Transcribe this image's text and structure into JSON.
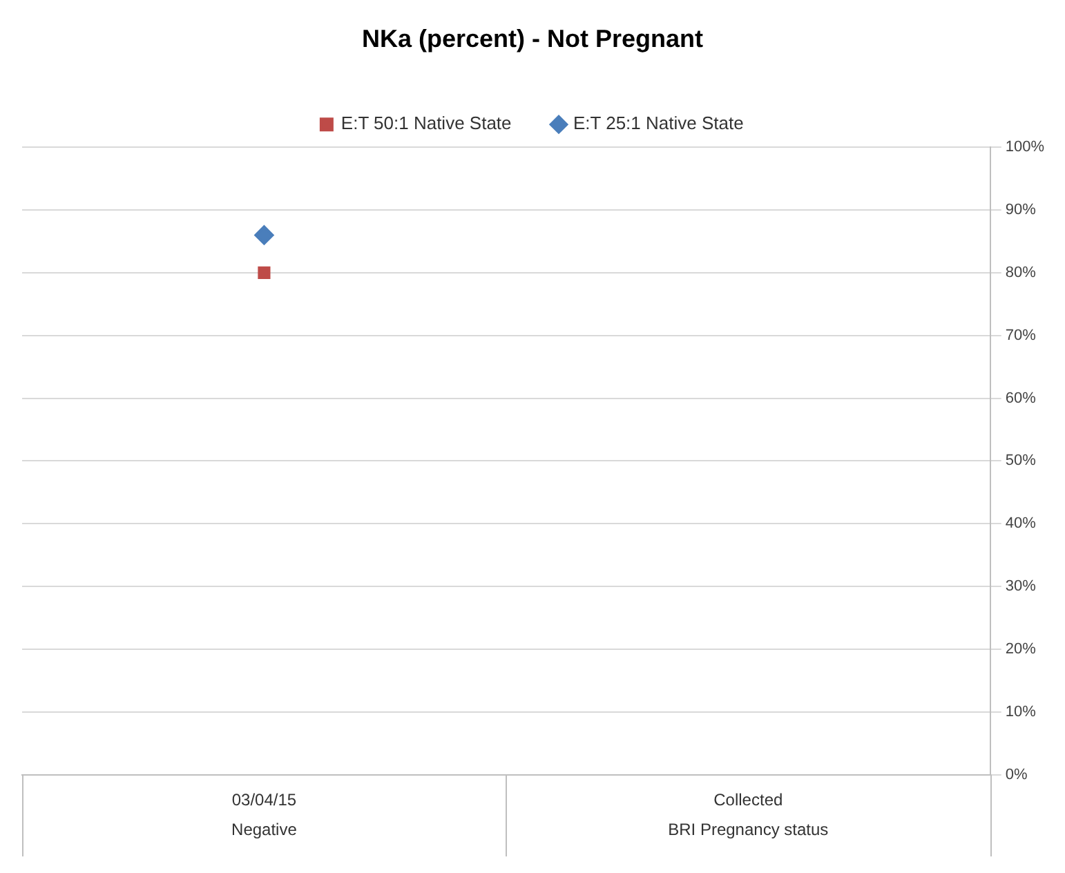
{
  "chart_data": {
    "type": "line",
    "title": "NKa (percent) - Not Pregnant",
    "categories": [
      "03/04/15\nNegative",
      "Collected\nBRI Pregnancy status"
    ],
    "series": [
      {
        "name": "E:T 50:1 Native State",
        "color": "#be4b48",
        "marker": "square",
        "values": [
          80,
          null
        ]
      },
      {
        "name": "E:T 25:1 Native State",
        "color": "#4a7ebb",
        "marker": "diamond",
        "values": [
          86,
          null
        ]
      }
    ],
    "ylim": [
      0,
      100
    ],
    "yticks": [
      {
        "value": 0,
        "label": "0%"
      },
      {
        "value": 10,
        "label": "10%"
      },
      {
        "value": 20,
        "label": "20%"
      },
      {
        "value": 30,
        "label": "30%"
      },
      {
        "value": 40,
        "label": "40%"
      },
      {
        "value": 50,
        "label": "50%"
      },
      {
        "value": 60,
        "label": "60%"
      },
      {
        "value": 70,
        "label": "70%"
      },
      {
        "value": 80,
        "label": "80%"
      },
      {
        "value": 90,
        "label": "90%"
      },
      {
        "value": 100,
        "label": "100%"
      }
    ],
    "grid": "y",
    "legend": "top"
  }
}
